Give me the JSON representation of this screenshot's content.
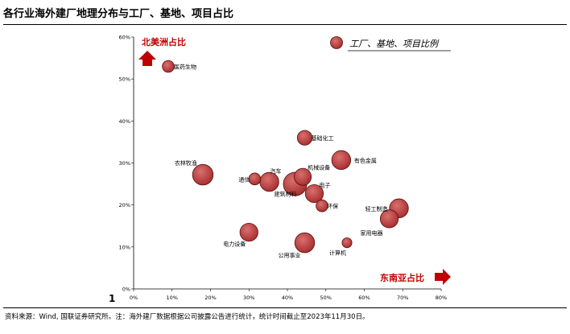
{
  "title": "各行业海外建厂地理分布与工厂、基地、项目占比",
  "page_number": "1",
  "footer": "资料来源：Wind, 国联证券研究所。注：海外建厂数据根据公司披露公告进行统计，统计时间截止至2023年11月30日。",
  "colors": {
    "bubble": "#b33a3a",
    "bubble_stroke": "#5a1010",
    "accent": "#c00000"
  },
  "chart_data": {
    "type": "scatter",
    "xlabel": "东南亚占比",
    "ylabel": "北美洲占比",
    "legend": {
      "label": "工厂、基地、项目比例",
      "position": "top-right"
    },
    "xlim": [
      0,
      0.8
    ],
    "ylim": [
      0,
      0.6
    ],
    "x_ticks": [
      "0%",
      "10%",
      "20%",
      "30%",
      "40%",
      "50%",
      "60%",
      "70%",
      "80%"
    ],
    "y_ticks": [
      "0%",
      "10%",
      "20%",
      "30%",
      "40%",
      "50%",
      "60%"
    ],
    "grid": false,
    "points": [
      {
        "label": "医药生物",
        "x": 0.09,
        "y": 0.53,
        "size": 2
      },
      {
        "label": "基础化工",
        "x": 0.445,
        "y": 0.36,
        "size": 4
      },
      {
        "label": "有色金属",
        "x": 0.54,
        "y": 0.307,
        "size": 8
      },
      {
        "label": "农林牧渔",
        "x": 0.18,
        "y": 0.272,
        "size": 10
      },
      {
        "label": "通信",
        "x": 0.315,
        "y": 0.262,
        "size": 2
      },
      {
        "label": "汽车",
        "x": 0.353,
        "y": 0.255,
        "size": 8
      },
      {
        "label": "机械设备",
        "x": 0.44,
        "y": 0.267,
        "size": 6
      },
      {
        "label": "建筑材料",
        "x": 0.42,
        "y": 0.25,
        "size": 14
      },
      {
        "label": "电子",
        "x": 0.47,
        "y": 0.227,
        "size": 7
      },
      {
        "label": "环保",
        "x": 0.49,
        "y": 0.198,
        "size": 2
      },
      {
        "label": "轻工制造",
        "x": 0.69,
        "y": 0.192,
        "size": 8
      },
      {
        "label": "家用电器",
        "x": 0.665,
        "y": 0.167,
        "size": 7
      },
      {
        "label": "电力设备",
        "x": 0.3,
        "y": 0.135,
        "size": 7
      },
      {
        "label": "公用事业",
        "x": 0.445,
        "y": 0.11,
        "size": 9
      },
      {
        "label": "计算机",
        "x": 0.555,
        "y": 0.11,
        "size": 1
      }
    ]
  }
}
